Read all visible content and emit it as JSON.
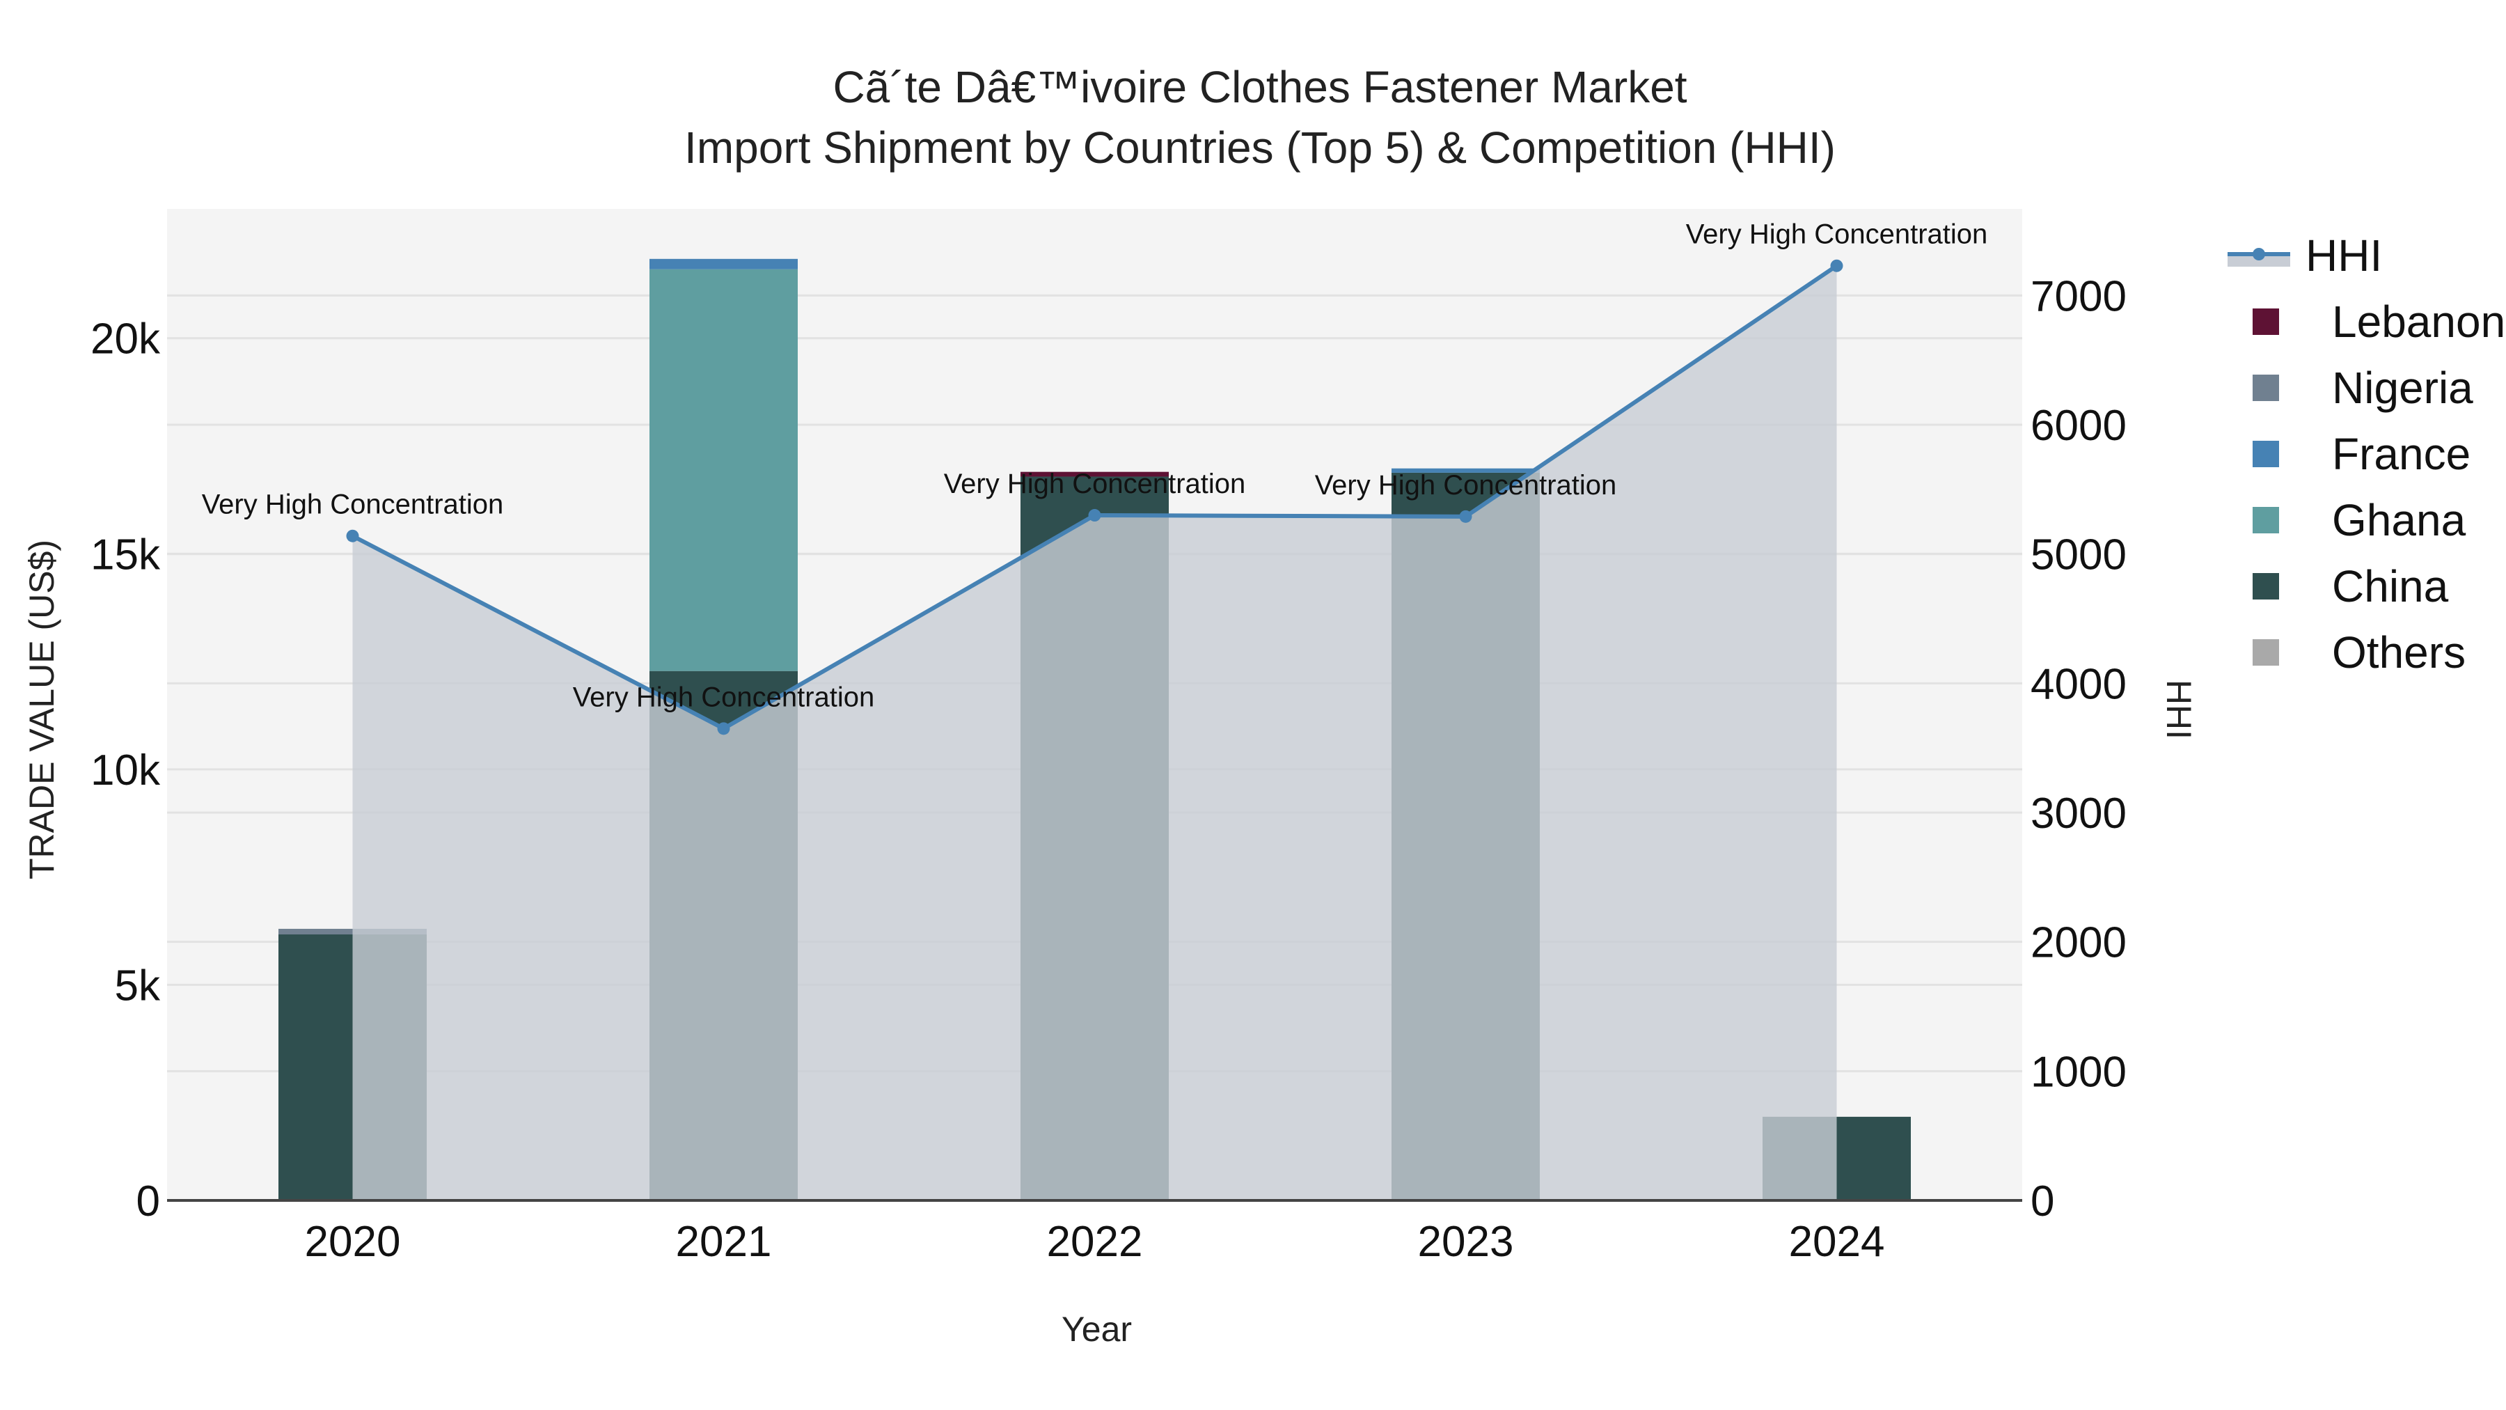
{
  "chart_data": {
    "type": "bar",
    "title": "Cã´te Dâ€™ivoire Clothes Fastener Market",
    "subtitle": "Import Shipment by Countries (Top 5) & Competition (HHI)",
    "xlabel": "Year",
    "ylabel": "TRADE VALUE (US$)",
    "y2label": "HHI",
    "categories": [
      "2020",
      "2021",
      "2022",
      "2023",
      "2024"
    ],
    "ylim": [
      0,
      23000
    ],
    "y2lim": [
      0,
      7670
    ],
    "yticks": [
      "0",
      "5k",
      "10k",
      "15k",
      "20k"
    ],
    "y2ticks": [
      "0",
      "1000",
      "2000",
      "3000",
      "4000",
      "5000",
      "6000",
      "7000"
    ],
    "stacking": "stacked",
    "series": [
      {
        "name": "Others",
        "color": "#a9a9a9",
        "values": [
          0,
          0,
          0,
          0,
          20
        ]
      },
      {
        "name": "China",
        "color": "#2f4f4f",
        "values": [
          6170,
          12280,
          16790,
          16880,
          1920
        ]
      },
      {
        "name": "Ghana",
        "color": "#5f9ea0",
        "values": [
          0,
          9320,
          0,
          0,
          0
        ]
      },
      {
        "name": "France",
        "color": "#4682b4",
        "values": [
          0,
          240,
          0,
          100,
          0
        ]
      },
      {
        "name": "Nigeria",
        "color": "#708090",
        "values": [
          130,
          0,
          0,
          0,
          0
        ]
      },
      {
        "name": "Lebanon",
        "color": "#5e1234",
        "values": [
          0,
          0,
          110,
          0,
          0
        ]
      }
    ],
    "line_series": {
      "name": "HHI",
      "axis": "y2",
      "color": "#4682b4",
      "fill_color": "#c8cdd5",
      "values": [
        5140,
        3650,
        5300,
        5290,
        7230
      ],
      "annotations": [
        "Very High Concentration",
        "Very High Concentration",
        "Very High Concentration",
        "Very High Concentration",
        "Very High Concentration"
      ]
    },
    "legend": [
      "HHI",
      "Lebanon",
      "Nigeria",
      "France",
      "Ghana",
      "China",
      "Others"
    ],
    "legend_position": "right",
    "grid": true,
    "plot_bgcolor": "#f4f4f4"
  }
}
